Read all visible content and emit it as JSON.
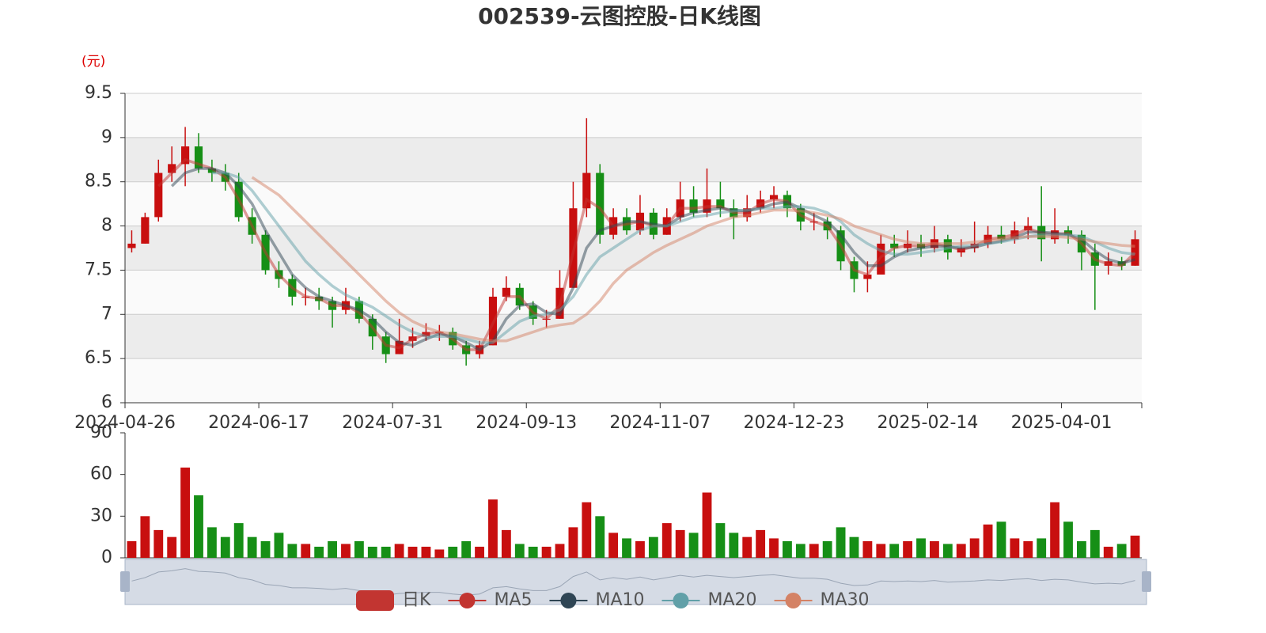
{
  "chart_data": {
    "type": "candlestick",
    "title": "002539-云图控股-日K线图",
    "y_unit": "(元)",
    "categories": [
      "2024-04-26",
      null,
      null,
      null,
      null,
      null,
      null,
      null,
      null,
      null,
      "2024-06-17",
      null,
      null,
      null,
      null,
      null,
      null,
      null,
      null,
      null,
      "2024-07-31",
      null,
      null,
      null,
      null,
      null,
      null,
      null,
      null,
      null,
      "2024-09-13",
      null,
      null,
      null,
      null,
      null,
      null,
      null,
      null,
      null,
      "2024-11-07",
      null,
      null,
      null,
      null,
      null,
      null,
      null,
      null,
      null,
      "2024-12-23",
      null,
      null,
      null,
      null,
      null,
      null,
      null,
      null,
      null,
      "2025-02-14",
      null,
      null,
      null,
      null,
      null,
      null,
      null,
      null,
      null,
      "2025-04-01",
      null,
      null,
      null,
      null,
      null
    ],
    "ylim": [
      6,
      9.5
    ],
    "yticks": [
      6,
      6.5,
      7,
      7.5,
      8,
      8.5,
      9,
      9.5
    ],
    "grid": true,
    "series": [
      {
        "name": "日K",
        "color": "#c23531",
        "up_color": "#c80f0f",
        "down_color": "#168f16",
        "values": [
          [
            7.75,
            7.8,
            7.7,
            7.95
          ],
          [
            7.8,
            8.1,
            7.8,
            8.15
          ],
          [
            8.1,
            8.6,
            8.05,
            8.75
          ],
          [
            8.6,
            8.7,
            8.5,
            8.9
          ],
          [
            8.7,
            8.9,
            8.45,
            9.12
          ],
          [
            8.9,
            8.65,
            8.6,
            9.05
          ],
          [
            8.65,
            8.6,
            8.5,
            8.75
          ],
          [
            8.6,
            8.5,
            8.4,
            8.7
          ],
          [
            8.5,
            8.1,
            8.05,
            8.6
          ],
          [
            8.1,
            7.9,
            7.8,
            8.2
          ],
          [
            7.9,
            7.5,
            7.45,
            7.95
          ],
          [
            7.5,
            7.4,
            7.3,
            7.6
          ],
          [
            7.4,
            7.2,
            7.1,
            7.45
          ],
          [
            7.2,
            7.2,
            7.1,
            7.3
          ],
          [
            7.2,
            7.15,
            7.05,
            7.3
          ],
          [
            7.15,
            7.05,
            6.85,
            7.2
          ],
          [
            7.05,
            7.15,
            7.0,
            7.3
          ],
          [
            7.15,
            6.95,
            6.9,
            7.2
          ],
          [
            6.95,
            6.75,
            6.6,
            7.0
          ],
          [
            6.75,
            6.55,
            6.45,
            6.8
          ],
          [
            6.55,
            6.7,
            6.55,
            6.95
          ],
          [
            6.7,
            6.75,
            6.62,
            6.85
          ],
          [
            6.75,
            6.8,
            6.7,
            6.9
          ],
          [
            6.8,
            6.8,
            6.7,
            6.88
          ],
          [
            6.8,
            6.65,
            6.6,
            6.85
          ],
          [
            6.65,
            6.55,
            6.42,
            6.7
          ],
          [
            6.55,
            6.65,
            6.5,
            6.7
          ],
          [
            6.65,
            7.2,
            6.65,
            7.3
          ],
          [
            7.2,
            7.3,
            7.15,
            7.43
          ],
          [
            7.3,
            7.1,
            7.05,
            7.35
          ],
          [
            7.1,
            6.95,
            6.88,
            7.15
          ],
          [
            6.95,
            6.95,
            6.85,
            7.05
          ],
          [
            6.95,
            7.3,
            6.95,
            7.5
          ],
          [
            7.3,
            8.2,
            7.3,
            8.5
          ],
          [
            8.2,
            8.6,
            8.1,
            9.22
          ],
          [
            8.6,
            7.9,
            7.8,
            8.7
          ],
          [
            7.9,
            8.1,
            7.85,
            8.2
          ],
          [
            8.1,
            7.95,
            7.9,
            8.2
          ],
          [
            7.95,
            8.15,
            7.9,
            8.35
          ],
          [
            8.15,
            7.9,
            7.85,
            8.2
          ],
          [
            7.9,
            8.1,
            7.9,
            8.2
          ],
          [
            8.1,
            8.3,
            8.05,
            8.5
          ],
          [
            8.3,
            8.15,
            8.1,
            8.45
          ],
          [
            8.15,
            8.3,
            8.1,
            8.65
          ],
          [
            8.3,
            8.2,
            8.1,
            8.5
          ],
          [
            8.2,
            8.1,
            7.85,
            8.3
          ],
          [
            8.1,
            8.2,
            8.05,
            8.35
          ],
          [
            8.2,
            8.3,
            8.15,
            8.4
          ],
          [
            8.3,
            8.35,
            8.2,
            8.45
          ],
          [
            8.35,
            8.2,
            8.1,
            8.4
          ],
          [
            8.2,
            8.05,
            7.95,
            8.25
          ],
          [
            8.05,
            8.05,
            7.95,
            8.15
          ],
          [
            8.05,
            7.95,
            7.85,
            8.1
          ],
          [
            7.95,
            7.6,
            7.5,
            8.0
          ],
          [
            7.6,
            7.4,
            7.25,
            7.65
          ],
          [
            7.4,
            7.45,
            7.25,
            7.6
          ],
          [
            7.45,
            7.8,
            7.45,
            7.9
          ],
          [
            7.8,
            7.75,
            7.65,
            7.9
          ],
          [
            7.75,
            7.8,
            7.7,
            7.95
          ],
          [
            7.8,
            7.75,
            7.65,
            7.9
          ],
          [
            7.75,
            7.85,
            7.7,
            8.0
          ],
          [
            7.85,
            7.7,
            7.62,
            7.9
          ],
          [
            7.7,
            7.75,
            7.65,
            7.85
          ],
          [
            7.75,
            7.8,
            7.7,
            8.05
          ],
          [
            7.8,
            7.9,
            7.75,
            8.0
          ],
          [
            7.9,
            7.85,
            7.8,
            8.0
          ],
          [
            7.85,
            7.95,
            7.8,
            8.05
          ],
          [
            7.95,
            8.0,
            7.85,
            8.1
          ],
          [
            8.0,
            7.85,
            7.6,
            8.45
          ],
          [
            7.85,
            7.95,
            7.8,
            8.2
          ],
          [
            7.95,
            7.9,
            7.8,
            8.0
          ],
          [
            7.9,
            7.7,
            7.5,
            7.95
          ],
          [
            7.7,
            7.55,
            7.05,
            7.8
          ],
          [
            7.55,
            7.6,
            7.45,
            7.7
          ],
          [
            7.6,
            7.55,
            7.5,
            7.65
          ],
          [
            7.55,
            7.85,
            7.55,
            7.95
          ]
        ]
      },
      {
        "name": "MA5",
        "color": "#c23531",
        "values": [
          null,
          null,
          8.45,
          8.6,
          8.75,
          8.7,
          8.65,
          8.55,
          8.3,
          8.0,
          7.7,
          7.45,
          7.3,
          7.2,
          7.18,
          7.1,
          7.1,
          7.02,
          6.85,
          6.65,
          6.62,
          6.72,
          6.78,
          6.8,
          6.72,
          6.6,
          6.6,
          6.9,
          7.2,
          7.2,
          7.02,
          6.95,
          7.1,
          7.7,
          8.3,
          8.2,
          8.0,
          8.02,
          8.05,
          8.0,
          8.0,
          8.2,
          8.2,
          8.22,
          8.22,
          8.15,
          8.15,
          8.25,
          8.3,
          8.28,
          8.12,
          8.05,
          8.0,
          7.78,
          7.5,
          7.45,
          7.65,
          7.75,
          7.78,
          7.77,
          7.8,
          7.77,
          7.73,
          7.77,
          7.85,
          7.87,
          7.9,
          7.97,
          7.92,
          7.9,
          7.92,
          7.8,
          7.62,
          7.57,
          7.55,
          7.7
        ]
      },
      {
        "name": "MA10",
        "color": "#2f4554",
        "values": [
          null,
          null,
          null,
          8.45,
          8.6,
          8.65,
          8.65,
          8.6,
          8.45,
          8.25,
          7.95,
          7.7,
          7.45,
          7.3,
          7.2,
          7.15,
          7.1,
          7.05,
          6.95,
          6.8,
          6.68,
          6.65,
          6.72,
          6.78,
          6.75,
          6.68,
          6.6,
          6.7,
          6.95,
          7.1,
          7.12,
          7.02,
          7.0,
          7.3,
          7.75,
          7.95,
          8.0,
          8.05,
          8.05,
          8.02,
          8.0,
          8.1,
          8.15,
          8.18,
          8.2,
          8.18,
          8.17,
          8.2,
          8.25,
          8.27,
          8.2,
          8.12,
          8.05,
          7.9,
          7.7,
          7.55,
          7.55,
          7.65,
          7.72,
          7.75,
          7.77,
          7.77,
          7.75,
          7.76,
          7.8,
          7.83,
          7.87,
          7.93,
          7.93,
          7.92,
          7.9,
          7.85,
          7.72,
          7.62,
          7.58,
          7.62
        ]
      },
      {
        "name": "MA20",
        "color": "#61a0a8",
        "values": [
          null,
          null,
          null,
          null,
          null,
          null,
          8.6,
          8.6,
          8.55,
          8.4,
          8.2,
          8.0,
          7.8,
          7.6,
          7.45,
          7.32,
          7.22,
          7.15,
          7.08,
          6.98,
          6.88,
          6.8,
          6.75,
          6.75,
          6.75,
          6.72,
          6.68,
          6.68,
          6.8,
          6.92,
          6.98,
          7.0,
          7.05,
          7.2,
          7.45,
          7.65,
          7.75,
          7.85,
          7.95,
          8.0,
          8.0,
          8.05,
          8.1,
          8.12,
          8.15,
          8.17,
          8.18,
          8.2,
          8.2,
          8.22,
          8.22,
          8.2,
          8.15,
          8.05,
          7.9,
          7.8,
          7.72,
          7.68,
          7.68,
          7.7,
          7.72,
          7.75,
          7.77,
          7.78,
          7.8,
          7.82,
          7.85,
          7.88,
          7.9,
          7.9,
          7.9,
          7.88,
          7.82,
          7.75,
          7.7,
          7.68
        ]
      },
      {
        "name": "MA30",
        "color": "#d48265",
        "values": [
          null,
          null,
          null,
          null,
          null,
          null,
          null,
          null,
          null,
          8.55,
          8.45,
          8.35,
          8.2,
          8.05,
          7.9,
          7.75,
          7.6,
          7.45,
          7.3,
          7.15,
          7.02,
          6.92,
          6.85,
          6.8,
          6.78,
          6.75,
          6.72,
          6.7,
          6.7,
          6.75,
          6.8,
          6.85,
          6.88,
          6.9,
          7.0,
          7.15,
          7.35,
          7.5,
          7.6,
          7.7,
          7.78,
          7.85,
          7.92,
          8.0,
          8.05,
          8.1,
          8.12,
          8.15,
          8.18,
          8.18,
          8.17,
          8.15,
          8.12,
          8.08,
          8.0,
          7.95,
          7.9,
          7.85,
          7.82,
          7.8,
          7.8,
          7.8,
          7.8,
          7.82,
          7.83,
          7.85,
          7.87,
          7.88,
          7.88,
          7.88,
          7.87,
          7.85,
          7.82,
          7.8,
          7.78,
          7.77
        ]
      }
    ],
    "volume": {
      "ylim": [
        0,
        90
      ],
      "yticks": [
        0,
        30,
        60,
        90
      ],
      "values": [
        12,
        30,
        20,
        15,
        65,
        45,
        22,
        15,
        25,
        15,
        12,
        18,
        10,
        10,
        8,
        12,
        10,
        12,
        8,
        8,
        10,
        8,
        8,
        6,
        8,
        12,
        8,
        42,
        20,
        10,
        8,
        8,
        10,
        22,
        40,
        30,
        18,
        14,
        12,
        15,
        25,
        20,
        18,
        47,
        25,
        18,
        15,
        20,
        14,
        12,
        10,
        10,
        12,
        22,
        15,
        12,
        10,
        10,
        12,
        14,
        12,
        10,
        10,
        14,
        24,
        26,
        14,
        12,
        14,
        40,
        26,
        12,
        20,
        8,
        10,
        16
      ]
    }
  }
}
